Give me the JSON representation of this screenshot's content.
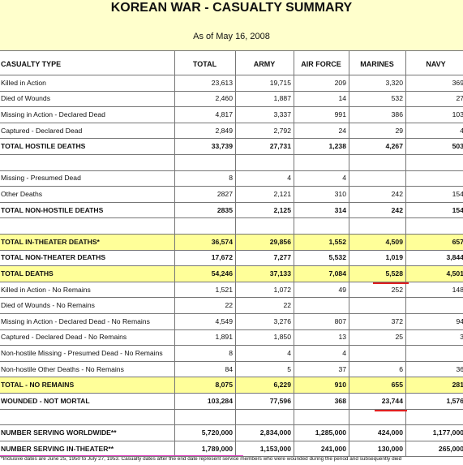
{
  "header": {
    "title": "KOREAN WAR - CASUALTY SUMMARY",
    "subtitle": "As of May 16, 2008"
  },
  "table": {
    "columns": [
      "CASUALTY TYPE",
      "TOTAL",
      "ARMY",
      "AIR FORCE",
      "MARINES",
      "NAVY"
    ],
    "sections": [
      [
        {
          "label": "Killed in Action",
          "values": [
            "23,613",
            "19,715",
            "209",
            "3,320",
            "369"
          ]
        },
        {
          "label": "Died of Wounds",
          "values": [
            "2,460",
            "1,887",
            "14",
            "532",
            "27"
          ]
        },
        {
          "label": "Missing in Action - Declared Dead",
          "values": [
            "4,817",
            "3,337",
            "991",
            "386",
            "103"
          ]
        },
        {
          "label": "Captured - Declared Dead",
          "values": [
            "2,849",
            "2,792",
            "24",
            "29",
            "4"
          ]
        },
        {
          "label": "TOTAL HOSTILE DEATHS",
          "values": [
            "33,739",
            "27,731",
            "1,238",
            "4,267",
            "503"
          ],
          "bold": true
        }
      ],
      [
        {
          "label": "Missing - Presumed Dead",
          "values": [
            "8",
            "4",
            "4",
            null,
            null
          ]
        },
        {
          "label": "Other Deaths",
          "values": [
            "2827",
            "2,121",
            "310",
            "242",
            "154"
          ]
        },
        {
          "label": "TOTAL NON-HOSTILE DEATHS",
          "values": [
            "2835",
            "2,125",
            "314",
            "242",
            "154"
          ],
          "bold": true
        }
      ],
      [
        {
          "label": "TOTAL IN-THEATER DEATHS*",
          "values": [
            "36,574",
            "29,856",
            "1,552",
            "4,509",
            "657"
          ],
          "bold": true,
          "highlight": true
        },
        {
          "label": "TOTAL NON-THEATER DEATHS",
          "values": [
            "17,672",
            "7,277",
            "5,532",
            "1,019",
            "3,844"
          ],
          "bold": true
        },
        {
          "label": "TOTAL DEATHS",
          "values": [
            "54,246",
            "37,133",
            "7,084",
            "5,528",
            "4,501"
          ],
          "bold": true,
          "highlight": true
        },
        {
          "label": "Killed in Action - No Remains",
          "values": [
            "1,521",
            "1,072",
            "49",
            "252",
            "148"
          ]
        },
        {
          "label": "Died of Wounds - No Remains",
          "values": [
            "22",
            "22",
            null,
            null,
            null
          ]
        },
        {
          "label": "Missing in Action - Declared Dead - No Remains",
          "values": [
            "4,549",
            "3,276",
            "807",
            "372",
            "94"
          ]
        },
        {
          "label": "Captured - Declared Dead - No Remains",
          "values": [
            "1,891",
            "1,850",
            "13",
            "25",
            "3"
          ]
        },
        {
          "label": "Non-hostile Missing - Presumed Dead - No Remains",
          "values": [
            "8",
            "4",
            "4",
            null,
            null
          ]
        },
        {
          "label": "Non-hostile Other Deaths - No Remains",
          "values": [
            "84",
            "5",
            "37",
            "6",
            "36"
          ]
        },
        {
          "label": "TOTAL - NO REMAINS",
          "values": [
            "8,075",
            "6,229",
            "910",
            "655",
            "281"
          ],
          "bold": true,
          "highlight": true
        },
        {
          "label": "WOUNDED - NOT MORTAL",
          "values": [
            "103,284",
            "77,596",
            "368",
            "23,744",
            "1,576"
          ],
          "bold": true
        }
      ],
      [
        {
          "label": "NUMBER SERVING WORLDWIDE**",
          "values": [
            "5,720,000",
            "2,834,000",
            "1,285,000",
            "424,000",
            "1,177,000"
          ],
          "bold": true
        },
        {
          "label": "NUMBER SERVING IN-THEATER**",
          "values": [
            "1,789,000",
            "1,153,000",
            "241,000",
            "130,000",
            "265,000"
          ],
          "bold": true
        }
      ]
    ]
  },
  "footnote": "*Inclusive dates are June 25, 1950 to July 27, 1953. Casualty dates after the end date represent service members who were wounded during the period and subsequently died"
}
